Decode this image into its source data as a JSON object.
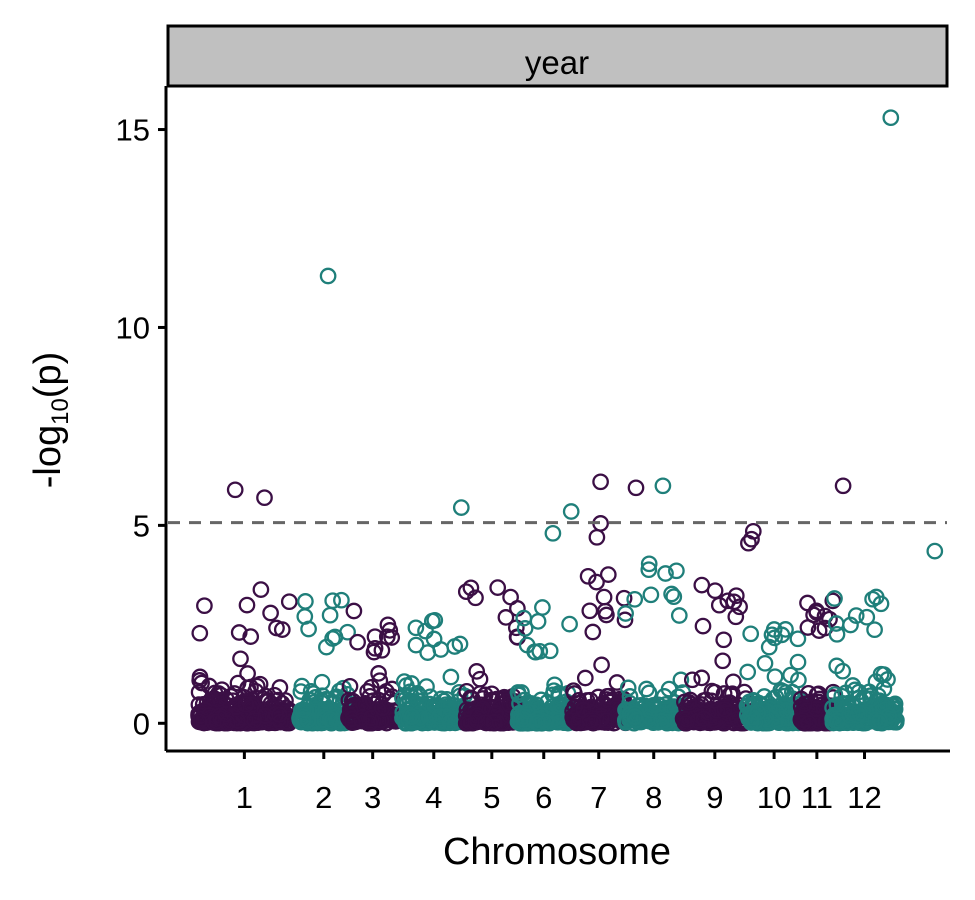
{
  "chart_data": {
    "type": "scatter",
    "subtype": "manhattan",
    "panel_label": "year",
    "xlabel": "Chromosome",
    "ylabel_main": "-log",
    "ylabel_sub": "10",
    "ylabel_end": "(p)",
    "ylim": [
      -0.7,
      16.1
    ],
    "yticks": [
      0,
      5,
      10,
      15
    ],
    "threshold": 5.07,
    "colors": {
      "odd": "#3b0f45",
      "even": "#1f7f7a",
      "threshold": "#666666",
      "strip": "#c0c0c0"
    },
    "chromosomes": [
      {
        "label": "1",
        "x": 0.75,
        "y": 2.6,
        "w": 1.5
      },
      {
        "label": "2",
        "x": 2.05,
        "y": 2.4,
        "w": 0.8
      },
      {
        "label": "3",
        "x": 2.85,
        "y": 2.2,
        "w": 0.8
      },
      {
        "label": "4",
        "x": 3.85,
        "y": 2.0,
        "w": 1.05
      },
      {
        "label": "5",
        "x": 4.8,
        "y": 2.6,
        "w": 0.85
      },
      {
        "label": "6",
        "x": 5.65,
        "y": 2.2,
        "w": 0.85
      },
      {
        "label": "7",
        "x": 6.55,
        "y": 2.8,
        "w": 0.9
      },
      {
        "label": "8",
        "x": 7.45,
        "y": 3.0,
        "w": 0.95
      },
      {
        "label": "9",
        "x": 8.45,
        "y": 2.6,
        "w": 1.05
      },
      {
        "label": "10",
        "x": 9.42,
        "y": 1.8,
        "w": 0.9
      },
      {
        "label": "11",
        "x": 10.12,
        "y": 2.6,
        "w": 0.55
      },
      {
        "label": "12",
        "x": 10.9,
        "y": 2.5,
        "w": 1.05
      }
    ],
    "xlim": [
      -0.5,
      12.25
    ],
    "top_hits": [
      {
        "chr": "1",
        "x": 0.6,
        "y": 5.9
      },
      {
        "chr": "1",
        "x": 1.08,
        "y": 5.7
      },
      {
        "chr": "2",
        "x": 2.12,
        "y": 11.3
      },
      {
        "chr": "4",
        "x": 4.3,
        "y": 5.45
      },
      {
        "chr": "6",
        "x": 5.8,
        "y": 4.8
      },
      {
        "chr": "6",
        "x": 6.1,
        "y": 5.35
      },
      {
        "chr": "7",
        "x": 6.58,
        "y": 6.1
      },
      {
        "chr": "7",
        "x": 6.58,
        "y": 5.05
      },
      {
        "chr": "7",
        "x": 6.52,
        "y": 4.7
      },
      {
        "chr": "7",
        "x": 7.16,
        "y": 5.95
      },
      {
        "chr": "8",
        "x": 7.6,
        "y": 6.0
      },
      {
        "chr": "9",
        "x": 9.0,
        "y": 4.55
      },
      {
        "chr": "9",
        "x": 9.05,
        "y": 4.65
      },
      {
        "chr": "9",
        "x": 9.08,
        "y": 4.85
      },
      {
        "chr": "11",
        "x": 10.55,
        "y": 6.0
      },
      {
        "chr": "12",
        "x": 11.33,
        "y": 15.3
      },
      {
        "chr": "12",
        "x": 12.05,
        "y": 4.35
      }
    ]
  }
}
